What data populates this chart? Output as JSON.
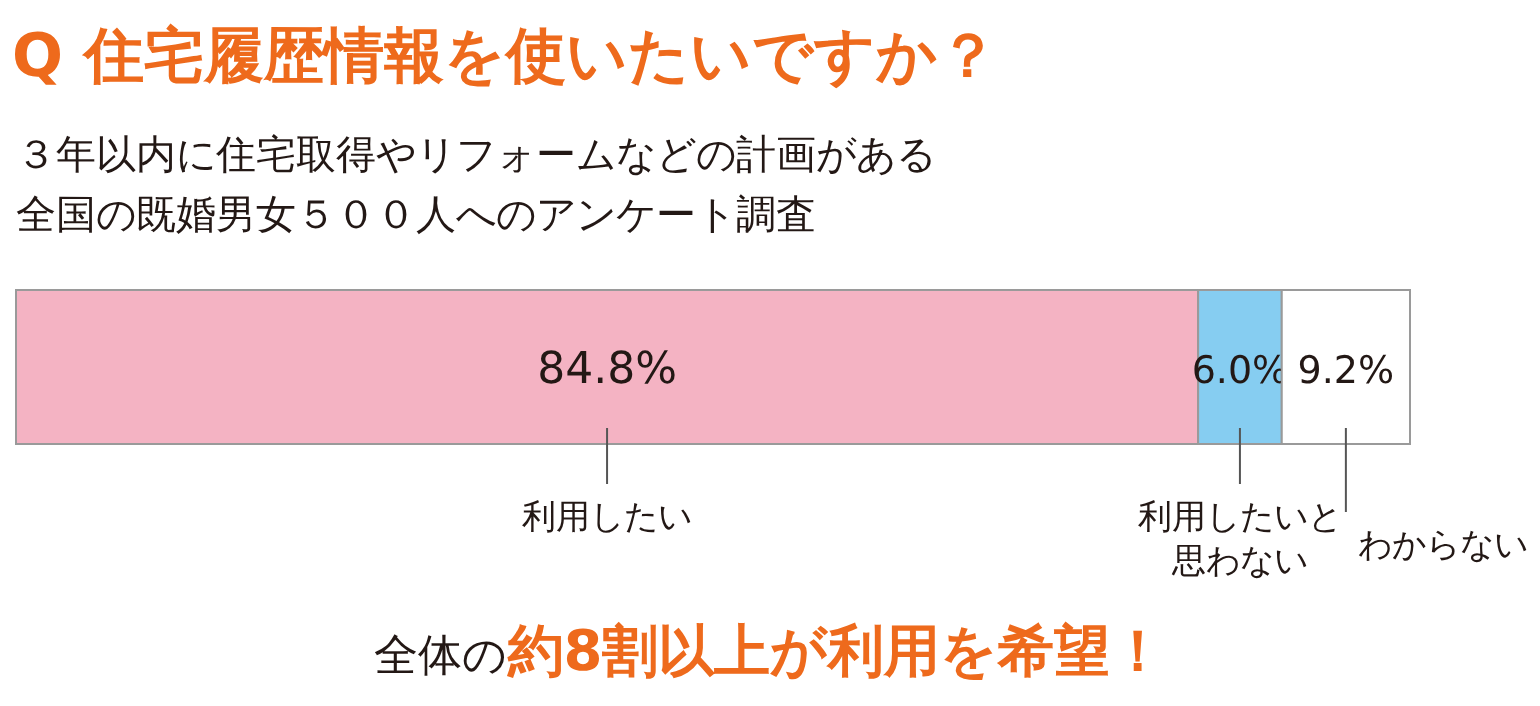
{
  "chart_data": {
    "type": "bar",
    "orientation": "horizontal",
    "stacked": true,
    "title": "Q 住宅履歴情報を使いたいですか？",
    "subtitle": "３年以内に住宅取得やリフォームなどの計画がある全国の既婚男女５００人へのアンケート調査",
    "categories": [
      null
    ],
    "xlim": [
      0,
      100
    ],
    "series": [
      {
        "name": "利用したい",
        "color": "#f4b3c3",
        "values": [
          84.8
        ],
        "value_labels": [
          "84.8%"
        ]
      },
      {
        "name": "利用したいと思わない",
        "color": "#86cdf1",
        "values": [
          6.0
        ],
        "value_labels": [
          "6.0%"
        ]
      },
      {
        "name": "わからない",
        "color": "#ffffff",
        "values": [
          9.2
        ],
        "value_labels": [
          "9.2%"
        ]
      }
    ],
    "annotations": [
      "全体の",
      "約8割以上が利用を希望！"
    ]
  }
}
